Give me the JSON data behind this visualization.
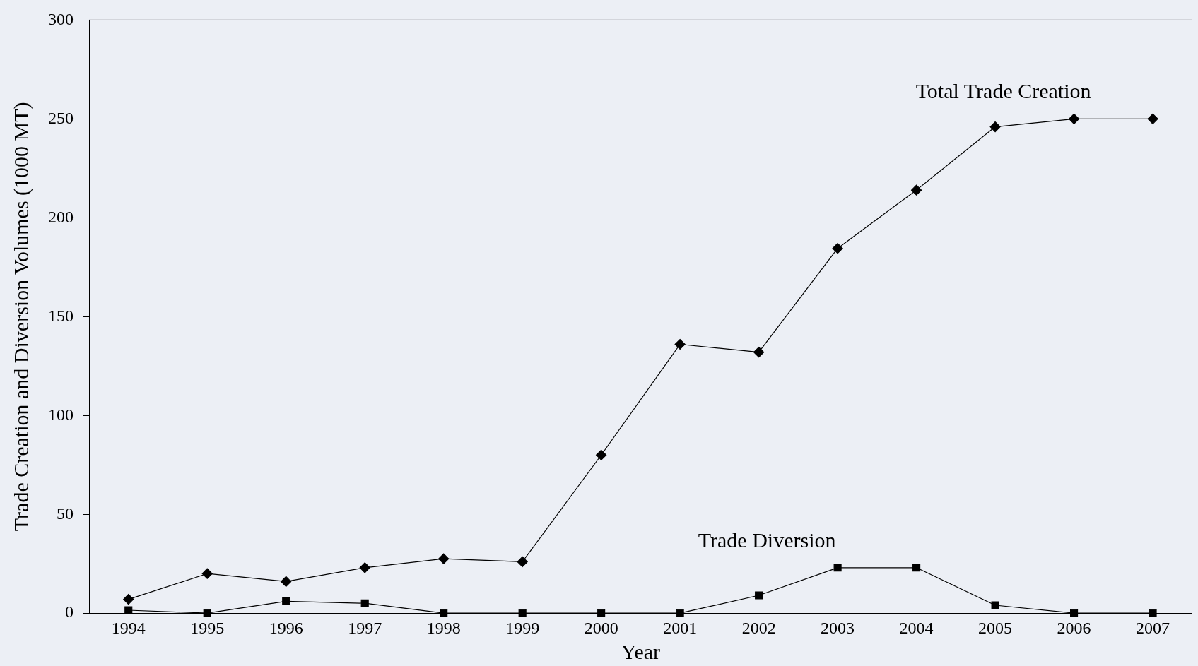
{
  "chart_data": {
    "type": "line",
    "xlabel": "Year",
    "ylabel": "Trade Creation and Diversion Volumes (1000 MT)",
    "categories": [
      "1994",
      "1995",
      "1996",
      "1997",
      "1998",
      "1999",
      "2000",
      "2001",
      "2002",
      "2003",
      "2004",
      "2005",
      "2006",
      "2007"
    ],
    "ylim": [
      0,
      300
    ],
    "yticks": [
      0,
      50,
      100,
      150,
      200,
      250,
      300
    ],
    "grid": false,
    "legend": false,
    "line_style": "solid",
    "series": [
      {
        "name": "Total Trade Creation",
        "color": "#000000",
        "marker": "diamond",
        "values": [
          7,
          20,
          16,
          23,
          27.5,
          26,
          80,
          136,
          132,
          184.5,
          214,
          246,
          250,
          250
        ]
      },
      {
        "name": "Trade Diversion",
        "color": "#000000",
        "marker": "square",
        "values": [
          1.5,
          0,
          6,
          5,
          0,
          0,
          0,
          0,
          9,
          23,
          23,
          4,
          0,
          0
        ]
      }
    ]
  }
}
